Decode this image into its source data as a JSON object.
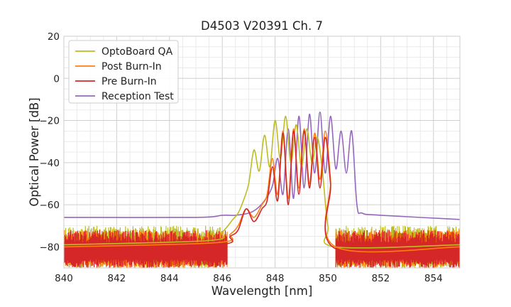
{
  "chart_data": {
    "type": "line",
    "title": "D4503 V20391 Ch. 7",
    "xlabel": "Wavelength [nm]",
    "ylabel": "Optical Power [dB]",
    "xlim": [
      840,
      855
    ],
    "ylim": [
      -90,
      20
    ],
    "xticks": [
      840,
      842,
      844,
      846,
      848,
      850,
      852,
      854
    ],
    "yticks": [
      20,
      0,
      -20,
      -40,
      -60,
      -80
    ],
    "grid": true,
    "legend_position": "top-left",
    "noise_floor": {
      "description": "Rapidly fluctuating noise between about -90 and -72 dB outside the emission band",
      "range": [
        -90,
        -72
      ]
    },
    "series": [
      {
        "name": "OptoBoard QA",
        "color": "#bcbd22",
        "x": [
          840.0,
          845.5,
          846.0,
          846.4,
          846.6,
          846.8,
          847.0,
          847.2,
          847.4,
          847.6,
          847.8,
          848.0,
          848.2,
          848.4,
          848.6,
          848.8,
          849.0,
          849.2,
          849.4,
          849.6,
          849.8,
          850.0,
          850.3,
          855.0
        ],
        "values": [
          -79,
          -77,
          -73,
          -67,
          -64,
          -58,
          -50,
          -34,
          -44,
          -27,
          -42,
          -20,
          -38,
          -18,
          -40,
          -22,
          -42,
          -24,
          -40,
          -28,
          -45,
          -70,
          -80,
          -79
        ]
      },
      {
        "name": "Post Burn-In",
        "color": "#ff7f0e",
        "x": [
          840.0,
          845.8,
          846.3,
          846.6,
          846.9,
          847.2,
          847.5,
          847.7,
          847.9,
          848.1,
          848.3,
          848.5,
          848.7,
          848.9,
          849.1,
          849.3,
          849.5,
          849.7,
          849.9,
          850.1,
          850.3,
          855.0
        ],
        "values": [
          -80,
          -78,
          -74,
          -70,
          -62,
          -66,
          -60,
          -55,
          -38,
          -55,
          -25,
          -57,
          -24,
          -52,
          -24,
          -50,
          -26,
          -48,
          -25,
          -48,
          -80,
          -80
        ]
      },
      {
        "name": "Pre Burn-In",
        "color": "#d62728",
        "x": [
          840.0,
          845.8,
          846.3,
          846.6,
          846.9,
          847.2,
          847.5,
          847.7,
          847.9,
          848.1,
          848.3,
          848.5,
          848.7,
          848.9,
          849.1,
          849.3,
          849.5,
          849.7,
          849.9,
          850.1,
          850.3,
          855.0
        ],
        "values": [
          -81,
          -79,
          -75,
          -72,
          -62,
          -68,
          -62,
          -58,
          -42,
          -58,
          -26,
          -60,
          -25,
          -55,
          -25,
          -52,
          -28,
          -52,
          -28,
          -50,
          -81,
          -81
        ]
      },
      {
        "name": "Reception Test",
        "color": "#9467bd",
        "x": [
          840.0,
          845.0,
          846.0,
          846.5,
          847.0,
          847.3,
          847.6,
          847.9,
          848.1,
          848.3,
          848.5,
          848.7,
          848.9,
          849.1,
          849.3,
          849.5,
          849.7,
          849.9,
          850.1,
          850.3,
          850.5,
          850.7,
          850.9,
          851.1,
          851.3,
          852.0,
          855.0
        ],
        "values": [
          -66,
          -66,
          -65,
          -65,
          -64,
          -62,
          -58,
          -51,
          -38,
          -55,
          -24,
          -57,
          -18,
          -52,
          -17,
          -45,
          -16,
          -45,
          -18,
          -43,
          -25,
          -45,
          -25,
          -60,
          -64,
          -65,
          -67
        ]
      }
    ]
  }
}
